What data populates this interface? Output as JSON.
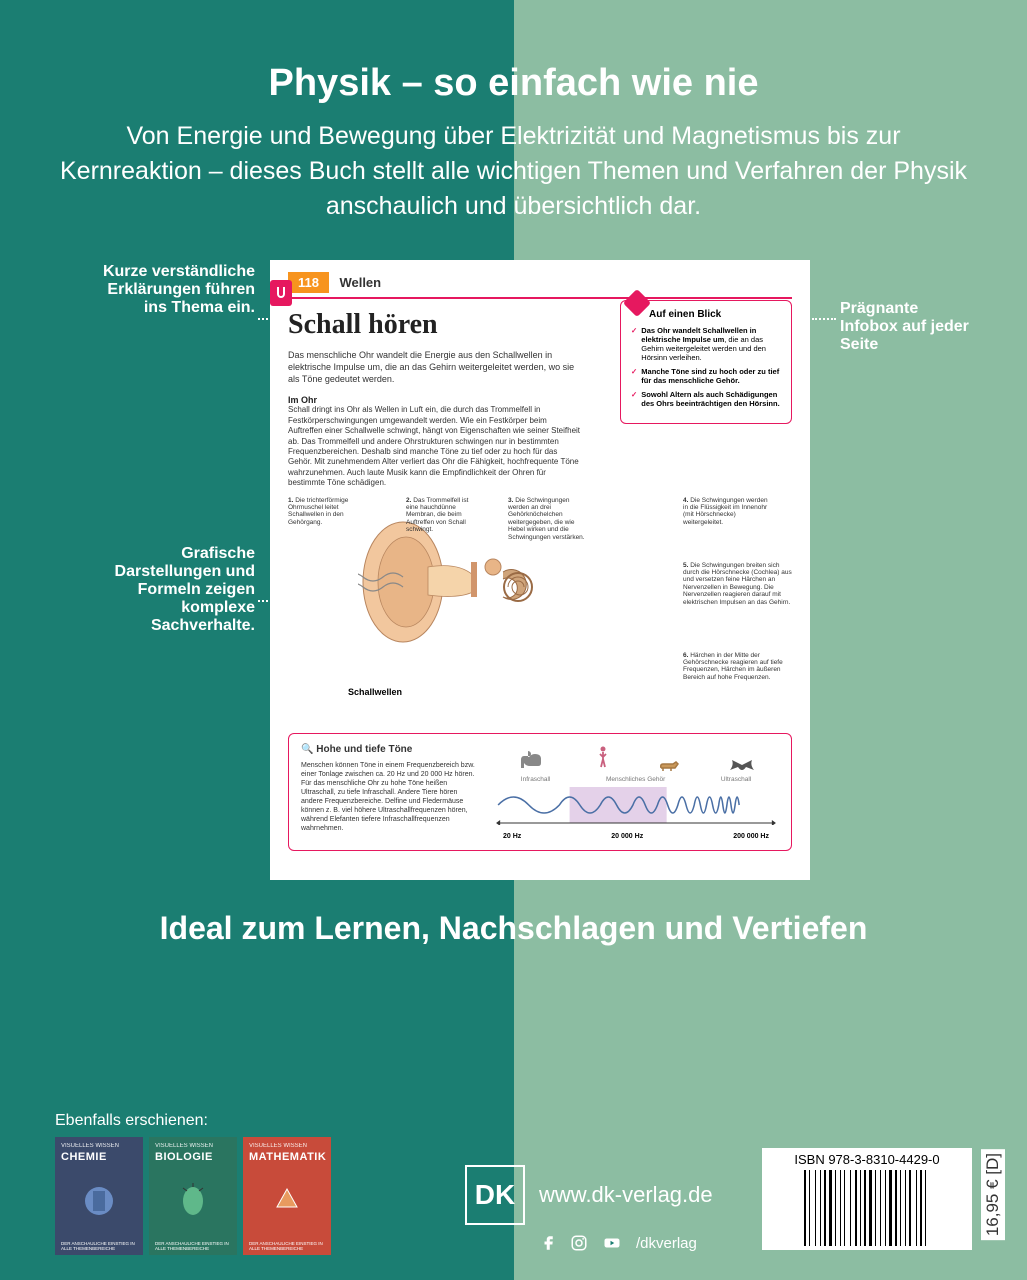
{
  "colors": {
    "bg_left": "#1b7e72",
    "bg_right": "#8cbda2",
    "accent": "#e6185f",
    "orange": "#f7941e",
    "white": "#ffffff",
    "thumb1": "#3b4a6b",
    "thumb2": "#2a7560",
    "thumb3": "#c84b3a"
  },
  "header": {
    "title": "Physik – so einfach wie nie",
    "subtitle": "Von Energie und Bewegung über Elektrizität und Magnetismus bis zur Kernreaktion – dieses Buch stellt alle wichtigen Themen und Verfahren der Physik anschaulich und übersichtlich dar."
  },
  "callouts": {
    "c1": "Kurze verständliche Erklärungen führen ins Thema ein.",
    "c2": "Grafische Darstellungen und Formeln zeigen komplexe Sachverhalte.",
    "c3": "Prägnante Infobox auf jeder Seite"
  },
  "page": {
    "number": "118",
    "category": "Wellen",
    "title": "Schall hören",
    "intro": "Das menschliche Ohr wandelt die Energie aus den Schallwellen in elektrische Impulse um, die an das Gehirn weitergeleitet werden, wo sie als Töne gedeutet werden.",
    "sub_heading": "Im Ohr",
    "body": "Schall dringt ins Ohr als Wellen in Luft ein, die durch das Trommelfell in Festkörperschwingungen umgewandelt werden. Wie ein Festkörper beim Auftreffen einer Schallwelle schwingt, hängt von Eigenschaften wie seiner Steifheit ab. Das Trommelfell und andere Ohrstrukturen schwingen nur in bestimmten Frequenzbereichen. Deshalb sind manche Töne zu tief oder zu hoch für das Gehör. Mit zunehmendem Alter verliert das Ohr die Fähigkeit, hochfrequente Töne wahrzunehmen. Auch laute Musik kann die Empfindlichkeit der Ohren für bestimmte Töne schädigen.",
    "infobox": {
      "title": "Auf einen Blick",
      "items": [
        "Das Ohr wandelt Schallwellen in elektrische Impulse um, die an das Gehirn weitergeleitet werden und den Hörsinn verleihen.",
        "Manche Töne sind zu hoch oder zu tief für das menschliche Gehör.",
        "Sowohl Altern als auch Schädigungen des Ohrs beeinträchtigen den Hörsinn."
      ]
    },
    "diagram": {
      "labels": [
        {
          "n": "1.",
          "t": "Die trichterförmige Ohrmuschel leitet Schallwellen in den Gehörgang."
        },
        {
          "n": "2.",
          "t": "Das Trommelfell ist eine hauchdünne Membran, die beim Auftreffen von Schall schwingt."
        },
        {
          "n": "3.",
          "t": "Die Schwingungen werden an drei Gehörknöchelchen weitergegeben, die wie Hebel wirken und die Schwingungen verstärken."
        },
        {
          "n": "4.",
          "t": "Die Schwingungen werden in die Flüssigkeit im Innenohr (mit Hörschnecke) weitergeleitet."
        },
        {
          "n": "5.",
          "t": "Die Schwingungen breiten sich durch die Hörschnecke (Cochlea) aus und versetzen feine Härchen an Nervenzellen in Bewegung. Die Nervenzellen reagieren darauf mit elektrischen Impulsen an das Gehirn."
        },
        {
          "n": "6.",
          "t": "Härchen in der Mitte der Gehörschnecke reagieren auf tiefe Frequenzen, Härchen im äußeren Bereich auf hohe Frequenzen."
        }
      ],
      "schallwellen": "Schallwellen"
    },
    "bottom": {
      "title": "Hohe und tiefe Töne",
      "text": "Menschen können Töne in einem Frequenzbereich bzw. einer Tonlage zwischen ca. 20 Hz und 20 000 Hz hören. Für das menschliche Ohr zu hohe Töne heißen Ultraschall, zu tiefe Infraschall. Andere Tiere hören andere Frequenzbereiche. Delfine und Fledermäuse können z. B. viel höhere Ultraschallfrequenzen hören, während Elefanten tiefere Infraschallfrequenzen wahrnehmen.",
      "scale_labels": [
        "Infraschall",
        "Menschliches Gehör",
        "Ultraschall"
      ],
      "axis": [
        "20 Hz",
        "20 000 Hz",
        "200 000 Hz"
      ]
    }
  },
  "tagline": "Ideal zum Lernen, Nachschlagen und Vertiefen",
  "also": "Ebenfalls erschienen:",
  "thumbs": {
    "series": "VISUELLES WISSEN",
    "titles": [
      "CHEMIE",
      "BIOLOGIE",
      "MATHEMATIK"
    ],
    "footer": "DER ANSCHAULICHE EINSTIEG IN ALLE THEMENBEREICHE"
  },
  "publisher": {
    "logo": "DK",
    "website": "www.dk-verlag.de",
    "handle": "/dkverlag"
  },
  "isbn": {
    "label": "ISBN 978-3-8310-4429-0",
    "price": "16,95 € [D]"
  }
}
